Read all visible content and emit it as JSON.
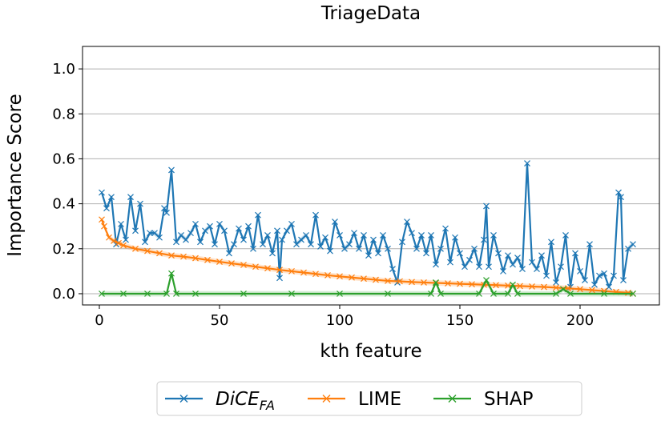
{
  "chart_data": {
    "type": "line",
    "title": "TriageData",
    "xlabel": "kth feature",
    "ylabel": "Importance Score",
    "xlim": [
      -7,
      233
    ],
    "ylim": [
      -0.05,
      1.1
    ],
    "xticks": [
      0,
      50,
      100,
      150,
      200
    ],
    "yticks": [
      0.0,
      0.2,
      0.4,
      0.6,
      0.8,
      1.0
    ],
    "xtick_labels": [
      "0",
      "50",
      "100",
      "150",
      "200"
    ],
    "ytick_labels": [
      "0.0",
      "0.2",
      "0.4",
      "0.6",
      "0.8",
      "1.0"
    ],
    "grid": "horizontal",
    "legend_position": "bottom-center",
    "series": [
      {
        "name": "DiCE",
        "name_subscript": "FA",
        "color": "#1f77b4",
        "marker": "x",
        "x": [
          1,
          3,
          5,
          7,
          9,
          11,
          13,
          15,
          17,
          19,
          21,
          23,
          25,
          27,
          28,
          30,
          32,
          34,
          36,
          38,
          40,
          42,
          44,
          46,
          48,
          50,
          52,
          54,
          56,
          58,
          60,
          62,
          64,
          66,
          68,
          70,
          72,
          74,
          75,
          76,
          78,
          80,
          82,
          84,
          86,
          88,
          90,
          92,
          94,
          96,
          98,
          100,
          102,
          104,
          106,
          108,
          110,
          112,
          114,
          116,
          118,
          120,
          122,
          124,
          126,
          128,
          130,
          132,
          134,
          136,
          138,
          140,
          142,
          144,
          146,
          148,
          150,
          152,
          154,
          156,
          158,
          160,
          161,
          162,
          164,
          166,
          168,
          170,
          172,
          174,
          176,
          178,
          180,
          182,
          184,
          186,
          188,
          190,
          192,
          194,
          196,
          198,
          200,
          202,
          204,
          206,
          208,
          210,
          212,
          214,
          216,
          217,
          218,
          220,
          222
        ],
        "values": [
          0.45,
          0.38,
          0.43,
          0.22,
          0.31,
          0.24,
          0.43,
          0.28,
          0.4,
          0.23,
          0.27,
          0.27,
          0.25,
          0.38,
          0.36,
          0.55,
          0.23,
          0.26,
          0.24,
          0.27,
          0.31,
          0.23,
          0.28,
          0.3,
          0.22,
          0.31,
          0.28,
          0.18,
          0.22,
          0.29,
          0.24,
          0.3,
          0.2,
          0.35,
          0.22,
          0.26,
          0.18,
          0.28,
          0.07,
          0.24,
          0.28,
          0.31,
          0.22,
          0.24,
          0.26,
          0.22,
          0.35,
          0.21,
          0.25,
          0.19,
          0.32,
          0.26,
          0.2,
          0.22,
          0.27,
          0.2,
          0.26,
          0.17,
          0.24,
          0.18,
          0.26,
          0.2,
          0.11,
          0.05,
          0.23,
          0.32,
          0.27,
          0.2,
          0.26,
          0.18,
          0.26,
          0.13,
          0.2,
          0.29,
          0.14,
          0.25,
          0.18,
          0.12,
          0.15,
          0.2,
          0.12,
          0.24,
          0.39,
          0.12,
          0.26,
          0.18,
          0.1,
          0.17,
          0.13,
          0.16,
          0.11,
          0.58,
          0.14,
          0.11,
          0.17,
          0.08,
          0.23,
          0.05,
          0.12,
          0.26,
          0.03,
          0.18,
          0.1,
          0.06,
          0.22,
          0.04,
          0.08,
          0.09,
          0.03,
          0.08,
          0.45,
          0.43,
          0.06,
          0.2,
          0.22
        ]
      },
      {
        "name": "LIME",
        "color": "#ff7f0e",
        "marker": "x",
        "x": [
          1,
          2,
          4,
          6,
          8,
          10,
          15,
          20,
          25,
          30,
          35,
          40,
          45,
          50,
          55,
          60,
          65,
          70,
          75,
          80,
          85,
          90,
          95,
          100,
          105,
          110,
          115,
          120,
          125,
          130,
          135,
          140,
          145,
          150,
          155,
          160,
          165,
          170,
          175,
          180,
          185,
          190,
          195,
          200,
          205,
          210,
          215,
          220,
          222
        ],
        "values": [
          0.33,
          0.3,
          0.25,
          0.235,
          0.225,
          0.215,
          0.2,
          0.19,
          0.18,
          0.17,
          0.165,
          0.158,
          0.15,
          0.142,
          0.135,
          0.128,
          0.12,
          0.113,
          0.106,
          0.1,
          0.094,
          0.088,
          0.082,
          0.077,
          0.072,
          0.067,
          0.062,
          0.057,
          0.055,
          0.052,
          0.05,
          0.048,
          0.046,
          0.044,
          0.042,
          0.04,
          0.038,
          0.036,
          0.034,
          0.032,
          0.03,
          0.027,
          0.024,
          0.02,
          0.016,
          0.012,
          0.008,
          0.004,
          0.0
        ]
      },
      {
        "name": "SHAP",
        "color": "#2ca02c",
        "marker": "x",
        "x": [
          1,
          10,
          20,
          28,
          30,
          32,
          40,
          60,
          80,
          100,
          120,
          138,
          140,
          142,
          158,
          161,
          164,
          170,
          172,
          174,
          190,
          193,
          196,
          210,
          222
        ],
        "values": [
          0.0,
          0.0,
          0.0,
          0.0,
          0.09,
          0.0,
          0.0,
          0.0,
          0.0,
          0.0,
          0.0,
          0.0,
          0.05,
          0.0,
          0.0,
          0.06,
          0.0,
          0.0,
          0.04,
          0.0,
          0.0,
          0.02,
          0.0,
          0.0,
          0.0
        ]
      }
    ]
  }
}
